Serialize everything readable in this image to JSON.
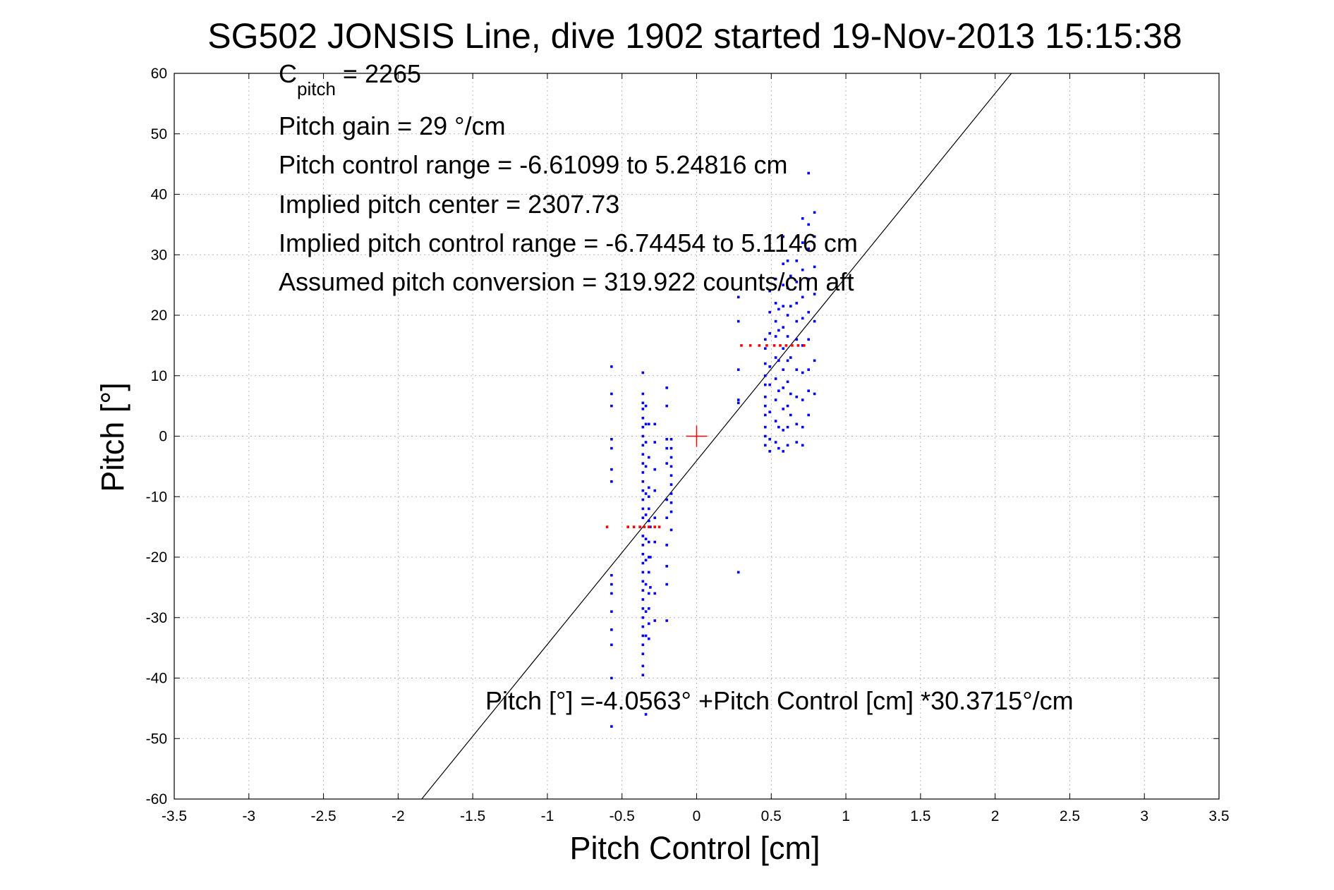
{
  "chart_data": {
    "type": "scatter",
    "title": "SG502 JONSIS Line, dive 1902 started 19-Nov-2013 15:15:38",
    "xlabel": "Pitch Control [cm]",
    "ylabel": "Pitch [°]",
    "xlim": [
      -3.5,
      3.5
    ],
    "ylim": [
      -60,
      60
    ],
    "xticks": [
      -3.5,
      -3,
      -2.5,
      -2,
      -1.5,
      -1,
      -0.5,
      0,
      0.5,
      1,
      1.5,
      2,
      2.5,
      3,
      3.5
    ],
    "xtick_labels": [
      "-3.5",
      "-3",
      "-2.5",
      "-2",
      "-1.5",
      "-1",
      "-0.5",
      "0",
      "0.5",
      "1",
      "1.5",
      "2",
      "2.5",
      "3",
      "3.5"
    ],
    "yticks": [
      -60,
      -50,
      -40,
      -30,
      -20,
      -10,
      0,
      10,
      20,
      30,
      40,
      50,
      60
    ],
    "ytick_labels": [
      "-60",
      "-50",
      "-40",
      "-30",
      "-20",
      "-10",
      "0",
      "10",
      "20",
      "30",
      "40",
      "50",
      "60"
    ],
    "grid": true,
    "colors": {
      "observed": "#0000ff",
      "binned": "#ff0000",
      "fit": "#000000",
      "center": "#ff0000"
    },
    "annotations": {
      "c_pitch_main": "C",
      "c_pitch_sub": "pitch",
      "c_pitch_value": " = 2265",
      "pitch_gain": "Pitch gain = 29 °/cm",
      "pitch_control_range": "Pitch control range = -6.61099 to 5.24816 cm",
      "implied_pitch_center": "Implied pitch center = 2307.73",
      "implied_pitch_control_range": "Implied pitch control range = -6.74454 to 5.1146 cm",
      "assumed_pitch_conversion": "Assumed pitch conversion = 319.922 counts/cm aft",
      "fit_equation": "Pitch [°] =-4.0563° +Pitch Control [cm] *30.3715°/cm"
    },
    "fit_line": {
      "intercept": -4.0563,
      "slope": 30.3715
    },
    "center_marker": {
      "x": 0,
      "y": 0
    },
    "series": [
      {
        "role": "observed",
        "points": [
          [
            -0.57,
            11.5
          ],
          [
            -0.57,
            7
          ],
          [
            -0.57,
            5
          ],
          [
            -0.57,
            -0.5
          ],
          [
            -0.57,
            -2
          ],
          [
            -0.57,
            -5.5
          ],
          [
            -0.57,
            -7.5
          ],
          [
            -0.57,
            -23
          ],
          [
            -0.57,
            -24.5
          ],
          [
            -0.57,
            -26
          ],
          [
            -0.57,
            -29
          ],
          [
            -0.57,
            -32
          ],
          [
            -0.57,
            -34.5
          ],
          [
            -0.57,
            -40
          ],
          [
            -0.57,
            -48
          ],
          [
            -0.36,
            10.5
          ],
          [
            -0.36,
            7
          ],
          [
            -0.36,
            5.5
          ],
          [
            -0.36,
            4.5
          ],
          [
            -0.36,
            3
          ],
          [
            -0.36,
            1.5
          ],
          [
            -0.36,
            0
          ],
          [
            -0.36,
            -1.5
          ],
          [
            -0.36,
            -3
          ],
          [
            -0.36,
            -4.5
          ],
          [
            -0.36,
            -6
          ],
          [
            -0.36,
            -7.5
          ],
          [
            -0.36,
            -9
          ],
          [
            -0.36,
            -10.5
          ],
          [
            -0.36,
            -12
          ],
          [
            -0.36,
            -13.5
          ],
          [
            -0.36,
            -16.5
          ],
          [
            -0.36,
            -18
          ],
          [
            -0.36,
            -19.5
          ],
          [
            -0.36,
            -21
          ],
          [
            -0.36,
            -22.5
          ],
          [
            -0.36,
            -24
          ],
          [
            -0.36,
            -25.5
          ],
          [
            -0.36,
            -27
          ],
          [
            -0.36,
            -28.5
          ],
          [
            -0.36,
            -30
          ],
          [
            -0.36,
            -31.5
          ],
          [
            -0.36,
            -33
          ],
          [
            -0.36,
            -34.5
          ],
          [
            -0.36,
            -36
          ],
          [
            -0.36,
            -38
          ],
          [
            -0.36,
            -39.5
          ],
          [
            -0.34,
            5
          ],
          [
            -0.34,
            2
          ],
          [
            -0.34,
            -1
          ],
          [
            -0.34,
            -5
          ],
          [
            -0.34,
            -9.5
          ],
          [
            -0.34,
            -13
          ],
          [
            -0.34,
            -17
          ],
          [
            -0.34,
            -20.5
          ],
          [
            -0.34,
            -24.5
          ],
          [
            -0.34,
            -29
          ],
          [
            -0.34,
            -33
          ],
          [
            -0.34,
            -46
          ],
          [
            -0.32,
            2
          ],
          [
            -0.32,
            -3.5
          ],
          [
            -0.32,
            -8.5
          ],
          [
            -0.32,
            -10
          ],
          [
            -0.32,
            -12
          ],
          [
            -0.32,
            -14
          ],
          [
            -0.32,
            -17.5
          ],
          [
            -0.32,
            -20
          ],
          [
            -0.32,
            -22.5
          ],
          [
            -0.32,
            -26
          ],
          [
            -0.32,
            -28.5
          ],
          [
            -0.32,
            -31
          ],
          [
            -0.32,
            -33.5
          ],
          [
            -0.31,
            -15
          ],
          [
            -0.31,
            -20
          ],
          [
            -0.31,
            -25
          ],
          [
            -0.28,
            2
          ],
          [
            -0.28,
            -1
          ],
          [
            -0.28,
            -5.5
          ],
          [
            -0.28,
            -9
          ],
          [
            -0.28,
            -13.5
          ],
          [
            -0.28,
            -17.5
          ],
          [
            -0.28,
            -26
          ],
          [
            -0.28,
            -30.5
          ],
          [
            -0.2,
            8
          ],
          [
            -0.2,
            5
          ],
          [
            -0.2,
            -0.5
          ],
          [
            -0.2,
            -2
          ],
          [
            -0.2,
            -4.5
          ],
          [
            -0.2,
            -10.5
          ],
          [
            -0.2,
            -13.5
          ],
          [
            -0.2,
            -18
          ],
          [
            -0.2,
            -21.5
          ],
          [
            -0.2,
            -24.5
          ],
          [
            -0.2,
            -30.5
          ],
          [
            -0.17,
            -0.5
          ],
          [
            -0.17,
            -2
          ],
          [
            -0.17,
            -3.5
          ],
          [
            -0.17,
            -5
          ],
          [
            -0.17,
            -6.5
          ],
          [
            -0.17,
            -8
          ],
          [
            -0.17,
            -9.5
          ],
          [
            -0.17,
            -11
          ],
          [
            -0.17,
            -12.5
          ],
          [
            -0.17,
            -15.5
          ],
          [
            0.28,
            23
          ],
          [
            0.28,
            19
          ],
          [
            0.28,
            11
          ],
          [
            0.28,
            6
          ],
          [
            0.28,
            5.5
          ],
          [
            0.28,
            -22.5
          ],
          [
            0.46,
            16
          ],
          [
            0.46,
            14.5
          ],
          [
            0.46,
            12
          ],
          [
            0.46,
            10
          ],
          [
            0.46,
            8.5
          ],
          [
            0.46,
            6.5
          ],
          [
            0.46,
            5
          ],
          [
            0.46,
            3.5
          ],
          [
            0.46,
            1.5
          ],
          [
            0.46,
            0
          ],
          [
            0.46,
            -1.5
          ],
          [
            0.49,
            24
          ],
          [
            0.49,
            20.5
          ],
          [
            0.49,
            17
          ],
          [
            0.49,
            11.5
          ],
          [
            0.49,
            8.5
          ],
          [
            0.49,
            4
          ],
          [
            0.49,
            -0.5
          ],
          [
            0.49,
            -2.5
          ],
          [
            0.53,
            26
          ],
          [
            0.53,
            22
          ],
          [
            0.53,
            19
          ],
          [
            0.53,
            16.5
          ],
          [
            0.53,
            13
          ],
          [
            0.53,
            9.5
          ],
          [
            0.53,
            6
          ],
          [
            0.53,
            2.5
          ],
          [
            0.53,
            -1
          ],
          [
            0.55,
            21
          ],
          [
            0.55,
            17.5
          ],
          [
            0.55,
            12.5
          ],
          [
            0.55,
            7.5
          ],
          [
            0.55,
            1.5
          ],
          [
            0.55,
            -2
          ],
          [
            0.58,
            33
          ],
          [
            0.58,
            28.5
          ],
          [
            0.58,
            25
          ],
          [
            0.58,
            21.5
          ],
          [
            0.58,
            18
          ],
          [
            0.58,
            14.5
          ],
          [
            0.58,
            11
          ],
          [
            0.58,
            8
          ],
          [
            0.58,
            4.5
          ],
          [
            0.58,
            1
          ],
          [
            0.58,
            -2.5
          ],
          [
            0.61,
            29
          ],
          [
            0.61,
            24.5
          ],
          [
            0.61,
            20
          ],
          [
            0.61,
            16.5
          ],
          [
            0.61,
            12.5
          ],
          [
            0.61,
            9
          ],
          [
            0.61,
            5
          ],
          [
            0.61,
            1.5
          ],
          [
            0.61,
            -1.5
          ],
          [
            0.63,
            26.5
          ],
          [
            0.63,
            21.5
          ],
          [
            0.63,
            13
          ],
          [
            0.63,
            7
          ],
          [
            0.63,
            3.5
          ],
          [
            0.67,
            33
          ],
          [
            0.67,
            29
          ],
          [
            0.67,
            25.5
          ],
          [
            0.67,
            22
          ],
          [
            0.67,
            19
          ],
          [
            0.67,
            16
          ],
          [
            0.67,
            11
          ],
          [
            0.67,
            6.5
          ],
          [
            0.67,
            2
          ],
          [
            0.67,
            -1
          ],
          [
            0.71,
            36
          ],
          [
            0.71,
            32
          ],
          [
            0.71,
            27.5
          ],
          [
            0.71,
            23
          ],
          [
            0.71,
            19.5
          ],
          [
            0.71,
            15
          ],
          [
            0.71,
            10.5
          ],
          [
            0.71,
            6
          ],
          [
            0.71,
            1.5
          ],
          [
            0.71,
            -1.5
          ],
          [
            0.75,
            43.5
          ],
          [
            0.75,
            35
          ],
          [
            0.75,
            31
          ],
          [
            0.75,
            26
          ],
          [
            0.75,
            20.5
          ],
          [
            0.75,
            16
          ],
          [
            0.75,
            11
          ],
          [
            0.75,
            7.5
          ],
          [
            0.75,
            3.5
          ],
          [
            0.79,
            37
          ],
          [
            0.79,
            33
          ],
          [
            0.79,
            28
          ],
          [
            0.79,
            23.5
          ],
          [
            0.79,
            19
          ],
          [
            0.79,
            12.5
          ],
          [
            0.79,
            7
          ]
        ]
      },
      {
        "role": "binned",
        "points": [
          [
            -0.6,
            -15
          ],
          [
            -0.46,
            -15
          ],
          [
            -0.42,
            -15
          ],
          [
            -0.38,
            -15
          ],
          [
            -0.35,
            -15
          ],
          [
            -0.32,
            -15
          ],
          [
            -0.28,
            -15
          ],
          [
            -0.25,
            -15
          ],
          [
            0.3,
            15
          ],
          [
            0.36,
            15
          ],
          [
            0.42,
            15
          ],
          [
            0.47,
            15
          ],
          [
            0.52,
            15
          ],
          [
            0.56,
            15
          ],
          [
            0.6,
            15
          ],
          [
            0.64,
            15
          ],
          [
            0.68,
            15
          ],
          [
            0.72,
            15
          ]
        ]
      }
    ]
  }
}
